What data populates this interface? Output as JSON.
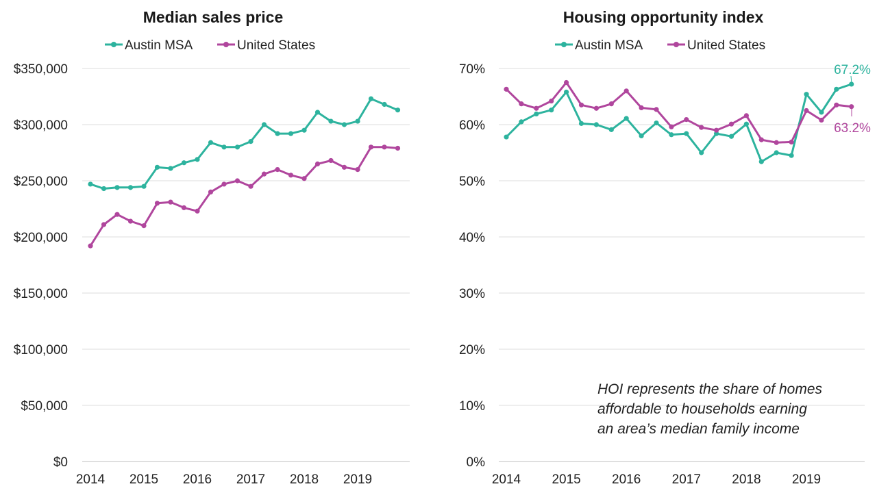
{
  "colors": {
    "austin": "#2db39e",
    "us": "#b0469d"
  },
  "chart_data": [
    {
      "type": "line",
      "title": "Median sales price",
      "x_tick_labels": [
        "2014",
        "2015",
        "2016",
        "2017",
        "2018",
        "2019"
      ],
      "y_tick_labels": [
        "$0",
        "$50,000",
        "$100,000",
        "$150,000",
        "$200,000",
        "$250,000",
        "$300,000",
        "$350,000"
      ],
      "ylim": [
        0,
        350000
      ],
      "grid": true,
      "legend_position": "top",
      "series": [
        {
          "name": "Austin MSA",
          "color_key": "austin",
          "values": [
            247000,
            243000,
            244000,
            244000,
            245000,
            262000,
            261000,
            266000,
            269000,
            284000,
            280000,
            280000,
            285000,
            300000,
            292000,
            292000,
            295000,
            311000,
            303000,
            300000,
            303000,
            323000,
            318000,
            313000
          ]
        },
        {
          "name": "United States",
          "color_key": "us",
          "values": [
            192000,
            211000,
            220000,
            214000,
            210000,
            230000,
            231000,
            226000,
            223000,
            240000,
            247000,
            250000,
            245000,
            256000,
            260000,
            255000,
            252000,
            265000,
            268000,
            262000,
            260000,
            280000,
            280000,
            279000
          ]
        }
      ]
    },
    {
      "type": "line",
      "title": "Housing opportunity index",
      "x_tick_labels": [
        "2014",
        "2015",
        "2016",
        "2017",
        "2018",
        "2019"
      ],
      "y_tick_labels": [
        "0%",
        "10%",
        "20%",
        "30%",
        "40%",
        "50%",
        "60%",
        "70%"
      ],
      "ylim": [
        0,
        70
      ],
      "grid": true,
      "legend_position": "top",
      "series": [
        {
          "name": "Austin MSA",
          "color_key": "austin",
          "values": [
            57.8,
            60.5,
            61.9,
            62.6,
            65.8,
            60.2,
            60.0,
            59.1,
            61.1,
            58.0,
            60.3,
            58.2,
            58.4,
            55.0,
            58.4,
            57.9,
            60.1,
            53.4,
            55.0,
            54.5,
            65.4,
            62.2,
            66.3,
            67.2
          ]
        },
        {
          "name": "United States",
          "color_key": "us",
          "values": [
            66.3,
            63.7,
            62.9,
            64.2,
            67.5,
            63.5,
            62.9,
            63.7,
            66.0,
            63.0,
            62.7,
            59.6,
            60.9,
            59.5,
            59.0,
            60.1,
            61.6,
            57.3,
            56.8,
            56.9,
            62.5,
            60.8,
            63.5,
            63.2
          ]
        }
      ],
      "end_labels": {
        "austin": "67.2%",
        "us": "63.2%"
      },
      "annotation": [
        "HOI represents the share of homes",
        "affordable to households earning",
        "an area’s median family income"
      ]
    }
  ]
}
